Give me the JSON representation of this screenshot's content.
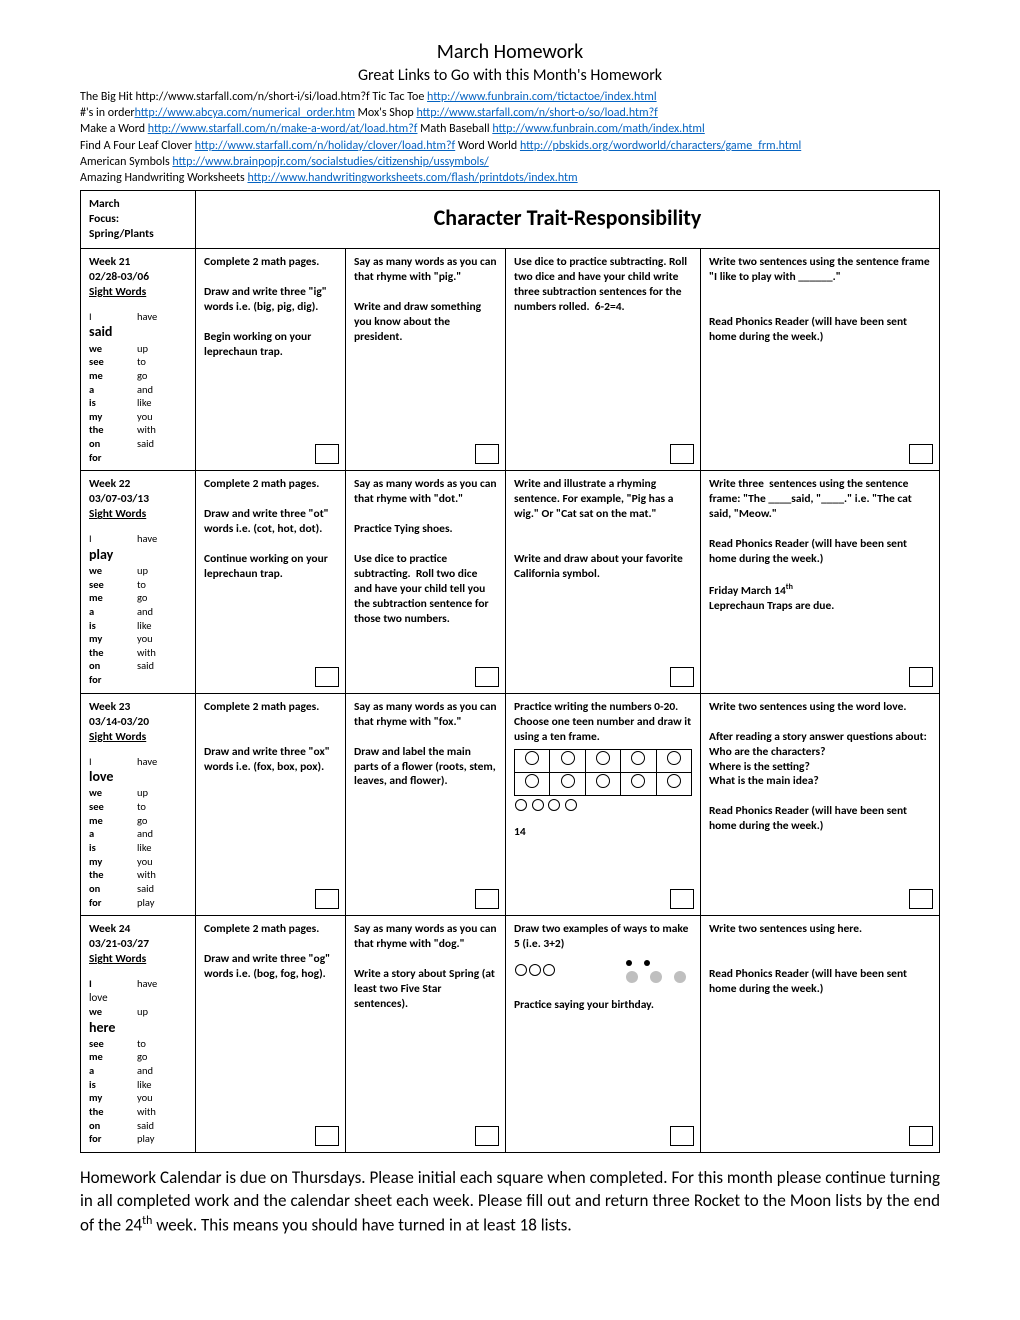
{
  "title": "March Homework",
  "subtitle": "Great Links to Go with this Month's Homework",
  "linkLines": [
    {
      "pre": "The Big Hit http://www.starfall.com/n/short-i/si/load.htm?f    Tic Tac Toe ",
      "link": "http://www.funbrain.com/tictactoe/index.html",
      "post": ""
    },
    {
      "pre": "   #'s in order",
      "link": "http://www.abcya.com/numerical_order.htm",
      "post": "   Mox's Shop ",
      "link2": "http://www.starfall.com/n/short-o/so/load.htm?f"
    },
    {
      "pre": "Make a Word ",
      "link": "http://www.starfall.com/n/make-a-word/at/load.htm?f",
      "post": "  Math Baseball ",
      "link2": "http://www.funbrain.com/math/index.html"
    },
    {
      "pre": "Find A Four Leaf Clover ",
      "link": "http://www.starfall.com/n/holiday/clover/load.htm?f",
      "post": " Word World ",
      "link2": "http://pbskids.org/wordworld/characters/game_frm.html"
    },
    {
      "pre": "American Symbols ",
      "link": "http://www.brainpopjr.com/socialstudies/citizenship/ussymbols/",
      "post": ""
    },
    {
      "pre": "Amazing Handwriting Worksheets ",
      "link": "http://www.handwritingworksheets.com/flash/printdots/index.htm",
      "post": ""
    }
  ],
  "headerLeft": {
    "l1": "March",
    "l2": "Focus:",
    "l3": "Spring/Plants"
  },
  "headerRight": "Character Trait-Responsibility",
  "weeks": [
    {
      "left": {
        "title": "Week 21",
        "date": "02/28-03/06",
        "sightTitle": "Sight Words",
        "pairs": [
          [
            "I",
            "have"
          ],
          [
            "we",
            "up"
          ],
          [
            "see",
            "to"
          ],
          [
            "me",
            "go"
          ],
          [
            "a",
            "and"
          ],
          [
            "is",
            "like"
          ],
          [
            "my",
            "you"
          ],
          [
            "the",
            "with"
          ],
          [
            "on",
            "said"
          ],
          [
            "for",
            ""
          ]
        ],
        "bigWord": "said",
        "bigIndex": 0
      },
      "c1": "Complete 2 math pages.\n\nDraw and write three \"ig\" words i.e. (big, pig, dig).\n\nBegin working on your leprechaun trap.",
      "c2": "Say as many words as you can that rhyme with \"pig.\"\n\nWrite and draw something you know about the president.",
      "c3": "Use dice to practice subtracting. Roll two dice and have your child write three subtraction sentences for the numbers rolled.  6-2=4.",
      "c4": "Write two sentences using the sentence frame\n\"I like to play with ______.\"\n\n\nRead Phonics Reader (will have been sent home during the week.)"
    },
    {
      "left": {
        "title": "Week 22",
        "date": "03/07-03/13",
        "sightTitle": "Sight Words",
        "pairs": [
          [
            "I",
            "have"
          ],
          [
            "we",
            "up"
          ],
          [
            "see",
            "to"
          ],
          [
            "me",
            "go"
          ],
          [
            "a",
            "and"
          ],
          [
            "is",
            "like"
          ],
          [
            "my",
            "you"
          ],
          [
            "the",
            "with"
          ],
          [
            "on",
            "said"
          ],
          [
            "for",
            ""
          ]
        ],
        "bigWord": "play",
        "bigIndex": 0
      },
      "c1": "Complete 2 math pages.\n\nDraw and write three \"ot\" words i.e. (cot, hot, dot).\n\nContinue working on your leprechaun trap.",
      "c2": "Say as many words as you can that rhyme with \"dot.\"\n\nPractice Tying shoes.\n\nUse dice to practice subtracting.  Roll two dice and have your child tell you the subtraction sentence for those two numbers.",
      "c3": "Write and illustrate a rhyming sentence. For example, \"Pig has a wig.\" Or \"Cat sat on the mat.\"\n\n\nWrite and draw about your favorite California symbol.",
      "c4": "Write three  sentences using the sentence frame: \"The ____said, \"____.\" i.e. \"The cat said, \"Meow.\"\n\nRead Phonics Reader (will have been sent home during the week.)\n\nFriday March 14th\nLeprechaun Traps are due."
    },
    {
      "left": {
        "title": "Week 23",
        "date": "03/14-03/20",
        "sightTitle": "Sight Words",
        "pairs": [
          [
            "I",
            "have"
          ],
          [
            "we",
            "up"
          ],
          [
            "see",
            "to"
          ],
          [
            "me",
            "go"
          ],
          [
            "a",
            "and"
          ],
          [
            "is",
            "like"
          ],
          [
            "my",
            "you"
          ],
          [
            "the",
            "with"
          ],
          [
            "on",
            "said"
          ],
          [
            "for",
            "play"
          ]
        ],
        "bigWord": "love",
        "bigIndex": 0
      },
      "c1": "Complete 2 math pages.\n\n\nDraw and write three \"ox\" words i.e. (fox, box, pox).",
      "c2": "Say as many words as you can that rhyme with \"fox.\"\n\nDraw and label the main parts of a flower (roots, stem, leaves, and flower).",
      "c3": "Practice writing the numbers 0-20.  Choose one teen number and draw it using a ten frame.",
      "c3after": "14",
      "c4": "Write two sentences using the word love.\n\nAfter reading a story answer questions about:\nWho are the characters?\nWhere is the setting?\nWhat is the main idea?\n\nRead Phonics Reader (will have been sent home during the week.)",
      "tenframe": true
    },
    {
      "left": {
        "title": "Week 24",
        "date": "03/21-03/27",
        "sightTitle": "Sight Words",
        "pairs": [
          [
            "I",
            "have"
          ],
          [
            "we",
            "up"
          ],
          [
            "see",
            "to"
          ],
          [
            "me",
            "go"
          ],
          [
            "a",
            "and"
          ],
          [
            "is",
            "like"
          ],
          [
            "my",
            "you"
          ],
          [
            "the",
            "with"
          ],
          [
            "on",
            "said"
          ],
          [
            "for",
            "play"
          ]
        ],
        "bigWord": "here",
        "bigIndex": 1,
        "extraPair": [
          "love",
          ""
        ]
      },
      "c1": "Complete 2 math pages.\n\nDraw and write three \"og\" words i.e. (bog, fog, hog).",
      "c2": "Say as many words as you can that rhyme with \"dog.\"\n\nWrite a story about Spring (at least two Five Star sentences).",
      "c3": "Draw two examples of ways to make 5 (i.e. 3+2)",
      "c3after": "Practice saying your birthday.",
      "c4": "Write two sentences using here.\n\n\nRead Phonics Reader (will have been sent home during the week.)",
      "dotsRow": true
    }
  ],
  "closing": "Homework Calendar is due on Thursdays. Please initial each square when completed. For this month please continue turning in all completed work and the calendar sheet each week.  Please fill out and return three Rocket to the Moon lists by the end of the 24th week. This means you should have turned in at least 18 lists."
}
